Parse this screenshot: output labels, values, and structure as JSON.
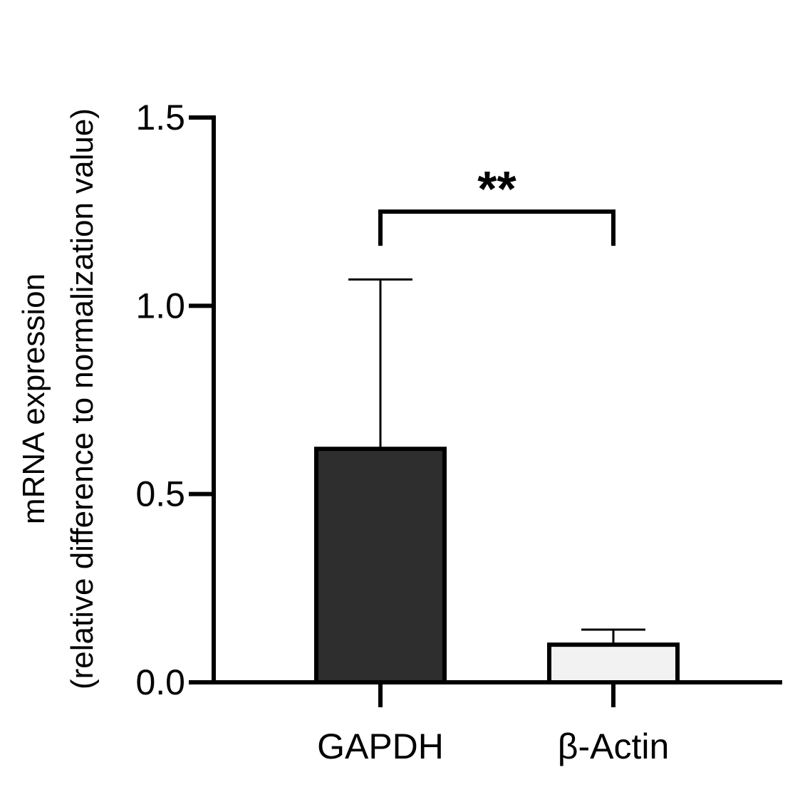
{
  "chart_data": {
    "type": "bar",
    "title": "",
    "xlabel": "",
    "ylabel_lines": [
      "mRNA expression",
      "(relative difference to normalization value)"
    ],
    "ylim": [
      0,
      1.5
    ],
    "yticks": [
      "0.0",
      "0.5",
      "1.0",
      "1.5"
    ],
    "ytick_values": [
      0,
      0.5,
      1.0,
      1.5
    ],
    "categories": [
      "GAPDH",
      "β-Actin"
    ],
    "values": [
      0.62,
      0.1
    ],
    "error_upper": [
      1.07,
      0.14
    ],
    "bar_colors": [
      "#2e2e2e",
      "#f2f2f2"
    ],
    "significance": {
      "label": "**",
      "between": [
        0,
        1
      ],
      "level": 1.25
    },
    "grid": false,
    "legend": "none"
  }
}
